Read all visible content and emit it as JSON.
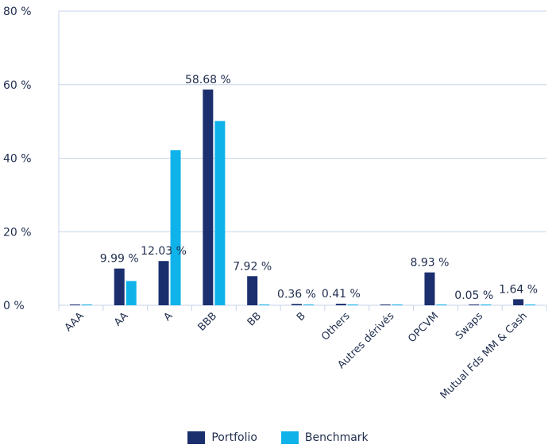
{
  "chart_data": {
    "type": "bar",
    "categories": [
      "AAA",
      "AA",
      "A",
      "BBB",
      "BB",
      "B",
      "Others",
      "Autres dérivés",
      "OPCVM",
      "Swaps",
      "Mutual Fds MM & Cash"
    ],
    "series": [
      {
        "name": "Portfolio",
        "color": "#1b2f6e",
        "values": [
          0,
          9.99,
          12.03,
          58.68,
          7.92,
          0.36,
          0.41,
          0,
          8.93,
          0.05,
          1.64
        ],
        "labels": [
          "",
          "9.99 %",
          "12.03 %",
          "58.68 %",
          "7.92 %",
          "0.36 %",
          "0.41 %",
          "",
          "8.93 %",
          "0.05 %",
          "1.64 %"
        ]
      },
      {
        "name": "Benchmark",
        "color": "#0fb3ea",
        "values": [
          0,
          6.6,
          42.2,
          50.1,
          0,
          0,
          0,
          0,
          0,
          0,
          0
        ]
      }
    ],
    "ylim": [
      0,
      80
    ],
    "yticks": [
      0,
      20,
      40,
      60,
      80
    ],
    "ytick_labels": [
      "0 %",
      "20 %",
      "40 %",
      "60 %",
      "80 %"
    ],
    "grid": true,
    "legend_position": "bottom-center"
  }
}
